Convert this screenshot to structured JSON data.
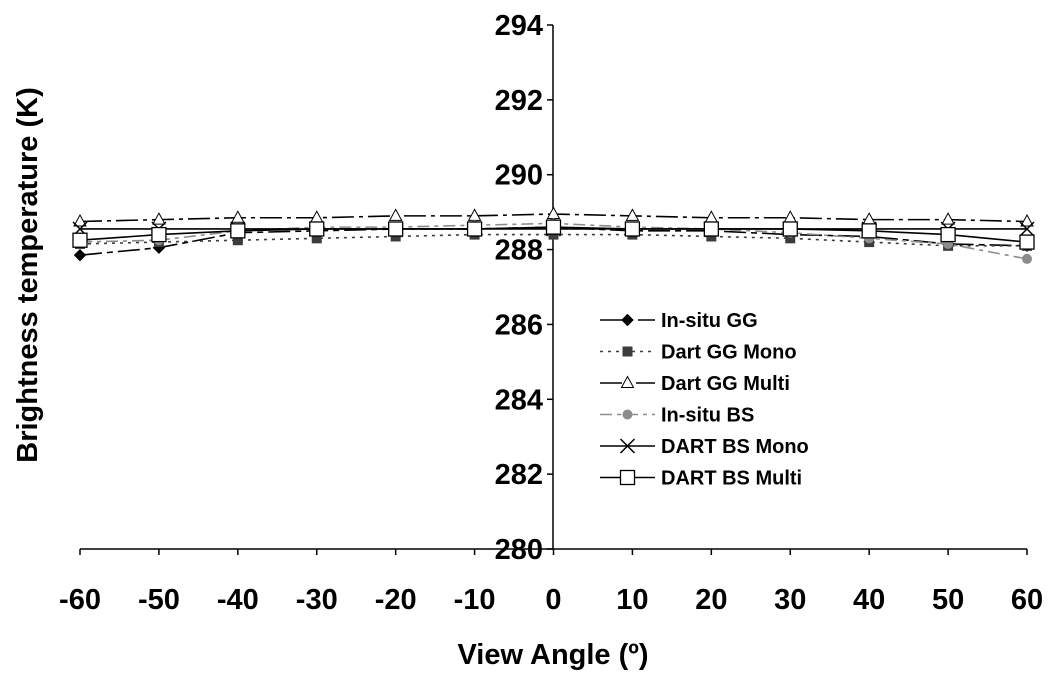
{
  "chart_data": {
    "type": "line",
    "xlabel": "View Angle (º)",
    "ylabel": "Brightness temperature (K)",
    "xlim": [
      -60,
      60
    ],
    "ylim": [
      280,
      294
    ],
    "x": [
      -60,
      -50,
      -40,
      -30,
      -20,
      -10,
      0,
      10,
      20,
      30,
      40,
      50,
      60
    ],
    "xticks": [
      "-60",
      "-50",
      "-40",
      "-30",
      "-20",
      "-10",
      "0",
      "10",
      "20",
      "30",
      "40",
      "50",
      "60"
    ],
    "yticks": [
      "280",
      "282",
      "284",
      "286",
      "288",
      "290",
      "292",
      "294"
    ],
    "grid": false,
    "legend_position": "center-right",
    "series": [
      {
        "name": "In-situ GG",
        "marker": "diamond",
        "color": "#000000",
        "dash": "22,5,6,5",
        "values": [
          287.85,
          288.05,
          288.45,
          288.5,
          288.55,
          288.55,
          288.6,
          288.5,
          288.5,
          288.4,
          288.35,
          288.15,
          288.1
        ]
      },
      {
        "name": "Dart GG Mono",
        "marker": "square",
        "color": "#3c3c3c",
        "dash": "3,5",
        "values": [
          288.15,
          288.2,
          288.25,
          288.3,
          288.35,
          288.4,
          288.4,
          288.4,
          288.35,
          288.3,
          288.2,
          288.1,
          288.1
        ]
      },
      {
        "name": "Dart GG Multi",
        "marker": "triangle",
        "color": "#000000",
        "dash": "22,5,4,5",
        "values": [
          288.75,
          288.8,
          288.85,
          288.85,
          288.9,
          288.9,
          288.95,
          288.9,
          288.85,
          288.85,
          288.8,
          288.8,
          288.75
        ]
      },
      {
        "name": "In-situ BS",
        "marker": "circle",
        "color": "#8c8c8c",
        "dash": "12,5,4,5",
        "values": [
          288.2,
          288.25,
          288.5,
          288.6,
          288.6,
          288.65,
          288.7,
          288.6,
          288.55,
          288.45,
          288.3,
          288.15,
          287.75
        ]
      },
      {
        "name": "DART BS Mono",
        "marker": "x",
        "color": "#000000",
        "dash": "",
        "values": [
          288.55,
          288.55,
          288.55,
          288.55,
          288.55,
          288.55,
          288.55,
          288.55,
          288.55,
          288.55,
          288.55,
          288.55,
          288.55
        ]
      },
      {
        "name": "DART BS Multi",
        "marker": "open-square",
        "color": "#000000",
        "dash": "",
        "values": [
          288.25,
          288.4,
          288.5,
          288.55,
          288.55,
          288.55,
          288.6,
          288.55,
          288.55,
          288.55,
          288.5,
          288.4,
          288.2
        ]
      }
    ]
  }
}
